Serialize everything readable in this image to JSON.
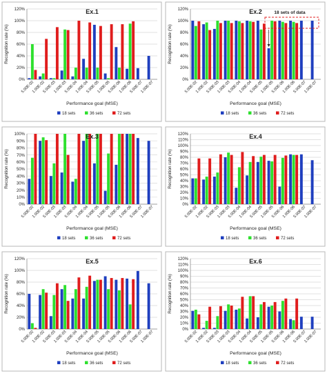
{
  "colors": {
    "s18": "#1f3fbf",
    "s36": "#2ee02e",
    "s72": "#e01d1d",
    "grid": "#d9d9d9",
    "frame": "#b7b7b7",
    "axis": "#7f7f7f",
    "text": "#222222"
  },
  "chart_data": [
    {
      "type": "bar",
      "title": "Ex.1",
      "xlabel": "Performance goal (MSE)",
      "ylabel": "Recognition rate (%)",
      "ylim": [
        0,
        100
      ],
      "yticks": [
        "0%",
        "20%",
        "40%",
        "60%",
        "80%",
        "100%",
        "120%"
      ],
      "categories": [
        "5.00E-02",
        "1.00E-02",
        "5.00E-03",
        "1.00E-03",
        "5.00E-04",
        "1.00E-04",
        "5.00E-05",
        "1.00E-05",
        "5.00E-06",
        "1.00E-06",
        "5.00E-07",
        "1.00E-07"
      ],
      "series": [
        {
          "name": "18 sets",
          "values": [
            2,
            5,
            2,
            15,
            5,
            35,
            93,
            10,
            55,
            18,
            19,
            40
          ]
        },
        {
          "name": "36 sets",
          "values": [
            60,
            10,
            2,
            85,
            20,
            20,
            20,
            2,
            20,
            95,
            0,
            0
          ]
        },
        {
          "name": "72 sets",
          "values": [
            16,
            69,
            89,
            84,
            100,
            97,
            91,
            94,
            94,
            99,
            0,
            0
          ]
        }
      ],
      "grid": true,
      "legend": "bottom"
    },
    {
      "type": "bar",
      "title": "Ex.2",
      "xlabel": "Performance goal (MSE)",
      "ylabel": "Recognition rate (%)",
      "ylim": [
        0,
        100
      ],
      "yticks": [
        "0%",
        "20%",
        "40%",
        "60%",
        "80%",
        "100%",
        "120%"
      ],
      "categories": [
        "5.00E-02",
        "1.00E-02",
        "5.00E-03",
        "1.00E-03",
        "5.00E-04",
        "1.00E-04",
        "5.00E-05",
        "1.00E-05",
        "5.00E-06",
        "1.00E-06",
        "5.00E-07",
        "1.00E-07"
      ],
      "series": [
        {
          "name": "18 sets",
          "values": [
            100,
            94,
            86,
            100,
            100,
            100,
            100,
            53,
            100,
            100,
            100,
            100
          ]
        },
        {
          "name": "36 sets",
          "values": [
            91,
            97,
            100,
            100,
            99,
            99,
            85,
            100,
            98,
            98,
            0,
            0
          ]
        },
        {
          "name": "72 sets",
          "values": [
            99,
            84,
            96,
            96,
            96,
            98,
            95,
            99,
            96,
            96,
            0,
            0
          ]
        }
      ],
      "annotation": "18 sets of data",
      "grid": true,
      "legend": "bottom"
    },
    {
      "type": "bar",
      "title": "Ex.3",
      "xlabel": "Performance goal (MSE)",
      "ylabel": "Recognition rate (%)",
      "ylim": [
        0,
        100
      ],
      "yticks": [
        "0%",
        "10%",
        "20%",
        "30%",
        "40%",
        "50%",
        "60%",
        "70%",
        "80%",
        "90%",
        "100%"
      ],
      "categories": [
        "5.00E-02",
        "1.00E-02",
        "5.00E-03",
        "1.00E-03",
        "5.00E-04",
        "1.00E-04",
        "5.00E-05",
        "1.00E-05",
        "5.00E-06",
        "1.00E-06",
        "5.00E-07",
        "1.00E-07"
      ],
      "series": [
        {
          "name": "18 sets",
          "values": [
            36,
            90,
            40,
            45,
            32,
            90,
            58,
            19,
            56,
            100,
            94,
            90
          ]
        },
        {
          "name": "36 sets",
          "values": [
            66,
            95,
            58,
            100,
            36,
            100,
            100,
            72,
            100,
            100,
            0,
            0
          ]
        },
        {
          "name": "72 sets",
          "values": [
            100,
            91,
            100,
            70,
            100,
            100,
            100,
            100,
            100,
            100,
            0,
            0
          ]
        }
      ],
      "grid": true,
      "legend": "bottom"
    },
    {
      "type": "bar",
      "title": "Ex.4",
      "xlabel": "Performance goal (MSE)",
      "ylabel": "Recognition rate (%)",
      "ylim": [
        0,
        100
      ],
      "yticks": [
        "0%",
        "10%",
        "20%",
        "30%",
        "40%",
        "50%",
        "60%",
        "70%",
        "80%",
        "90%",
        "100%",
        "110%",
        "120%"
      ],
      "categories": [
        "5.00E-02",
        "1.00E-02",
        "5.00E-03",
        "1.00E-03",
        "5.00E-04",
        "1.00E-04",
        "5.00E-05",
        "1.00E-05",
        "5.00E-06",
        "1.00E-06",
        "5.00E-07",
        "1.00E-07"
      ],
      "series": [
        {
          "name": "18 sets",
          "values": [
            44,
            42,
            47,
            80,
            28,
            49,
            72,
            74,
            30,
            85,
            85,
            75
          ]
        },
        {
          "name": "36 sets",
          "values": [
            44,
            47,
            54,
            88,
            63,
            72,
            81,
            73,
            79,
            84,
            0,
            0
          ]
        },
        {
          "name": "72 sets",
          "values": [
            78,
            78,
            85,
            84,
            89,
            82,
            84,
            84,
            83,
            84,
            0,
            0
          ]
        }
      ],
      "grid": true,
      "legend": "bottom"
    },
    {
      "type": "bar",
      "title": "Ex.5",
      "xlabel": "Performance goal (MSE)",
      "ylabel": "Recognition rate (%)",
      "ylim": [
        0,
        100
      ],
      "yticks": [
        "0%",
        "20%",
        "40%",
        "60%",
        "80%",
        "100%",
        "120%"
      ],
      "categories": [
        "5.00E-02",
        "1.00E-02",
        "5.00E-03",
        "1.00E-03",
        "5.00E-04",
        "1.00E-04",
        "5.00E-05",
        "1.00E-05",
        "5.00E-06",
        "1.00E-06",
        "5.00E-07",
        "1.00E-07"
      ],
      "series": [
        {
          "name": "18 sets",
          "values": [
            60,
            58,
            22,
            68,
            52,
            52,
            82,
            90,
            84,
            86,
            99,
            78
          ]
        },
        {
          "name": "36 sets",
          "values": [
            10,
            68,
            58,
            75,
            68,
            72,
            84,
            68,
            66,
            42,
            0,
            0
          ]
        },
        {
          "name": "72 sets",
          "values": [
            2,
            62,
            78,
            48,
            88,
            91,
            84,
            87,
            87,
            85,
            0,
            0
          ]
        }
      ],
      "grid": true,
      "legend": "bottom"
    },
    {
      "type": "bar",
      "title": "Ex.6",
      "xlabel": "Performance goal (MSE)",
      "ylabel": "Recognition rate (%)",
      "ylim": [
        0,
        100
      ],
      "yticks": [
        "0%",
        "10%",
        "20%",
        "30%",
        "40%",
        "50%",
        "60%",
        "70%",
        "80%",
        "90%",
        "100%",
        "110%",
        "120%"
      ],
      "categories": [
        "5.00E-02",
        "1.00E-02",
        "5.00E-03",
        "1.00E-03",
        "5.00E-04",
        "1.00E-04",
        "5.00E-05",
        "1.00E-05",
        "5.00E-06",
        "1.00E-06",
        "5.00E-07",
        "1.00E-07"
      ],
      "series": [
        {
          "name": "18 sets",
          "values": [
            31,
            2,
            2,
            31,
            33,
            18,
            20,
            38,
            30,
            17,
            21,
            21
          ]
        },
        {
          "name": "36 sets",
          "values": [
            33,
            14,
            22,
            42,
            35,
            56,
            42,
            40,
            48,
            15,
            0,
            0
          ]
        },
        {
          "name": "72 sets",
          "values": [
            25,
            38,
            39,
            40,
            55,
            56,
            46,
            46,
            52,
            52,
            0,
            0
          ]
        }
      ],
      "grid": true,
      "legend": "bottom"
    }
  ]
}
